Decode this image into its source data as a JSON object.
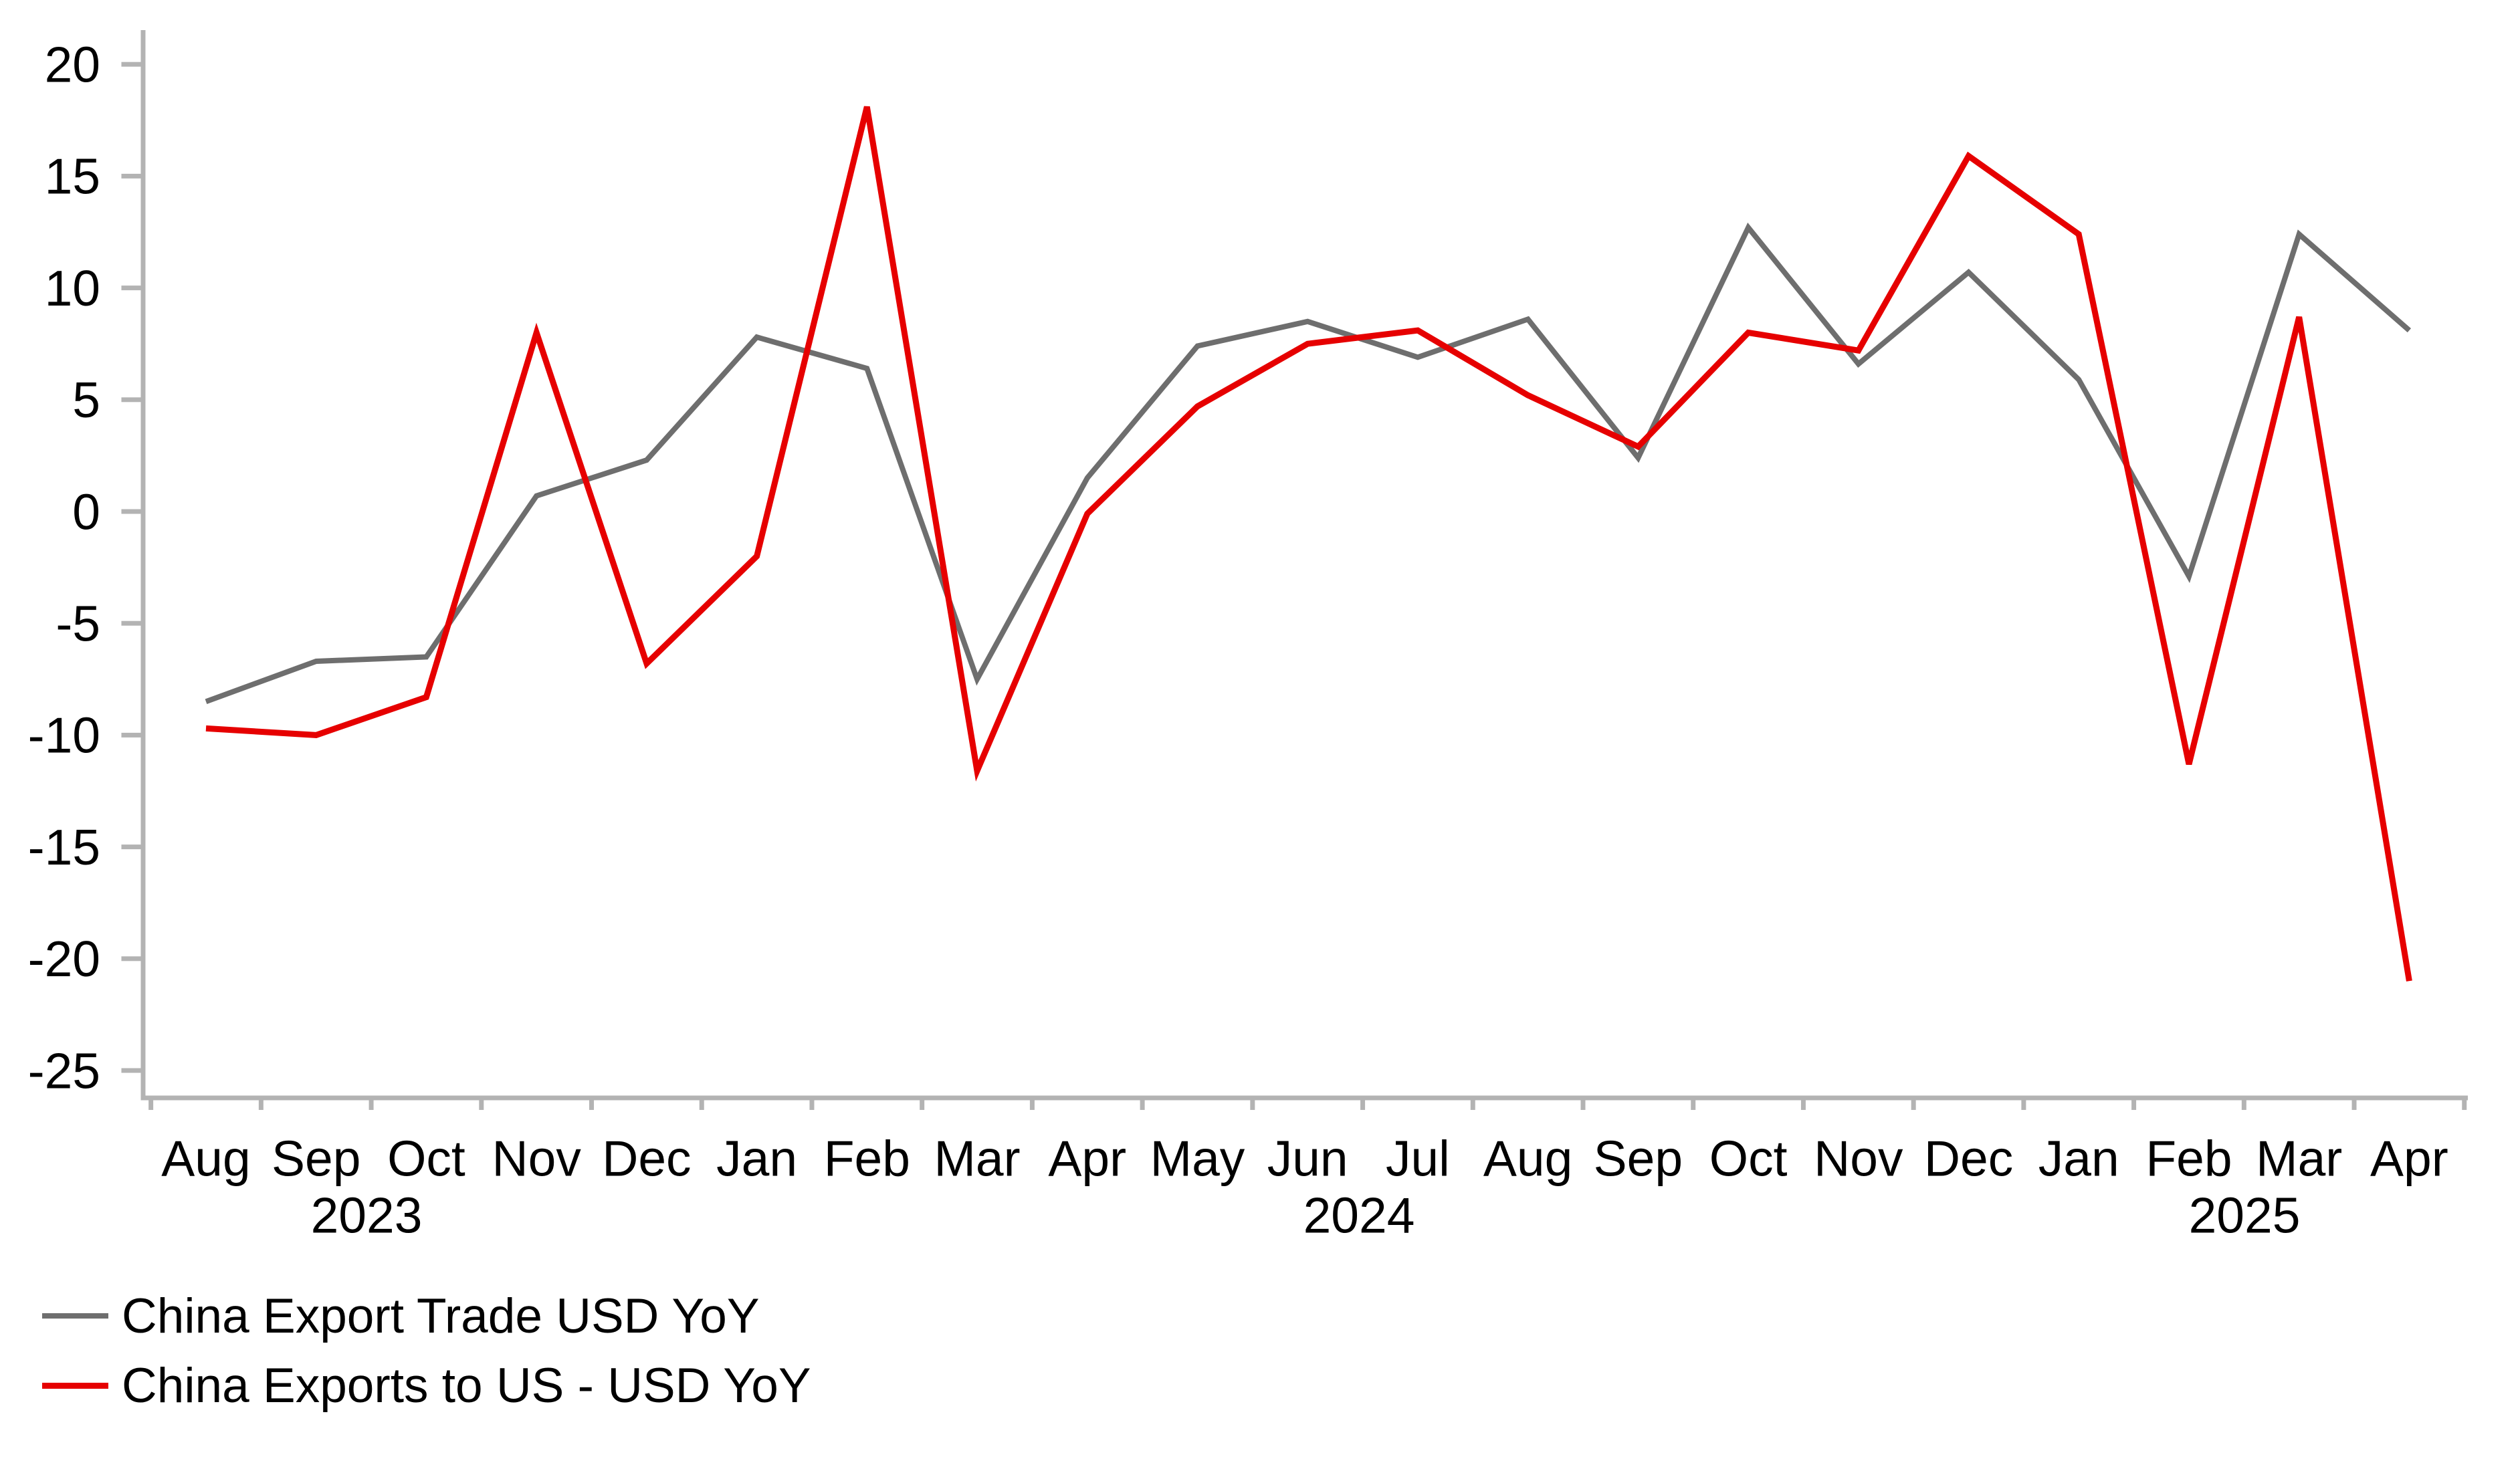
{
  "figure": {
    "background": "#ffffff",
    "axis_color": "#b3b3b3",
    "text_color": "#000000"
  },
  "chart_data": {
    "type": "line",
    "title": "",
    "xlabel": "",
    "ylabel": "",
    "grid": false,
    "legend_position": "bottom-left",
    "categories": [
      "Aug",
      "Sep",
      "Oct",
      "Nov",
      "Dec",
      "Jan",
      "Feb",
      "Mar",
      "Apr",
      "May",
      "Jun",
      "Jul",
      "Aug",
      "Sep",
      "Oct",
      "Nov",
      "Dec",
      "Jan",
      "Feb",
      "Mar",
      "Apr"
    ],
    "year_labels": [
      "2023",
      "2024",
      "2025"
    ],
    "yticks": [
      20,
      15,
      10,
      5,
      0,
      -5,
      -10,
      -15,
      -20,
      -25
    ],
    "ylim": [
      -26.3,
      21.5
    ],
    "series": [
      {
        "name": "China Export Trade USD YoY",
        "color": "#6e6e6e",
        "stroke_width": 8,
        "values": [
          -8.5,
          -6.7,
          -6.5,
          0.7,
          2.3,
          7.8,
          6.4,
          -7.5,
          1.5,
          7.4,
          8.5,
          6.9,
          8.6,
          2.4,
          12.7,
          6.6,
          10.7,
          5.9,
          -2.9,
          12.4,
          8.1
        ]
      },
      {
        "name": "China Exports to US - USD YoY",
        "color": "#e60000",
        "stroke_width": 9,
        "values": [
          -9.7,
          -10.0,
          -8.3,
          8.0,
          -6.8,
          -2.0,
          18.1,
          -11.6,
          -0.1,
          4.7,
          7.5,
          8.1,
          5.2,
          2.9,
          8.0,
          7.2,
          15.9,
          12.4,
          -11.3,
          8.7,
          -21.0
        ]
      }
    ]
  }
}
